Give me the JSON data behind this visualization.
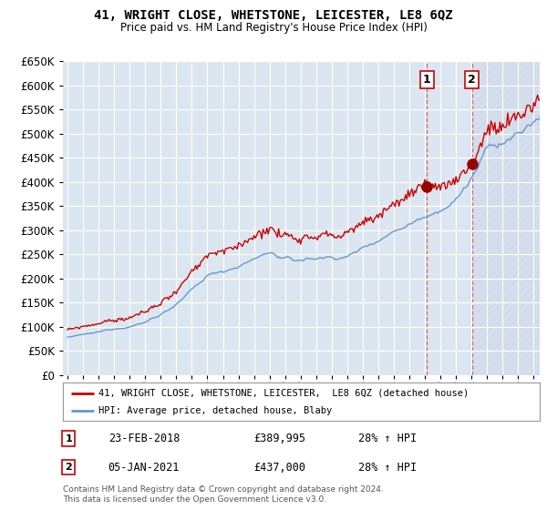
{
  "title": "41, WRIGHT CLOSE, WHETSTONE, LEICESTER, LE8 6QZ",
  "subtitle": "Price paid vs. HM Land Registry's House Price Index (HPI)",
  "ylim": [
    0,
    650000
  ],
  "yticks": [
    0,
    50000,
    100000,
    150000,
    200000,
    250000,
    300000,
    350000,
    400000,
    450000,
    500000,
    550000,
    600000,
    650000
  ],
  "xlim_start": 1994.7,
  "xlim_end": 2025.4,
  "background_color": "#ffffff",
  "plot_bg_color": "#dce6f0",
  "grid_color": "#ffffff",
  "red_line_color": "#cc0000",
  "blue_line_color": "#6699cc",
  "hatch_color": "#c0c8d8",
  "sale1_x": 2018.12,
  "sale1_y": 389995,
  "sale2_x": 2021.02,
  "sale2_y": 437000,
  "sale1_label": "23-FEB-2018",
  "sale1_price": "£389,995",
  "sale1_hpi": "28% ↑ HPI",
  "sale2_label": "05-JAN-2021",
  "sale2_price": "£437,000",
  "sale2_hpi": "28% ↑ HPI",
  "legend_line1": "41, WRIGHT CLOSE, WHETSTONE, LEICESTER,  LE8 6QZ (detached house)",
  "legend_line2": "HPI: Average price, detached house, Blaby",
  "footnote": "Contains HM Land Registry data © Crown copyright and database right 2024.\nThis data is licensed under the Open Government Licence v3.0."
}
